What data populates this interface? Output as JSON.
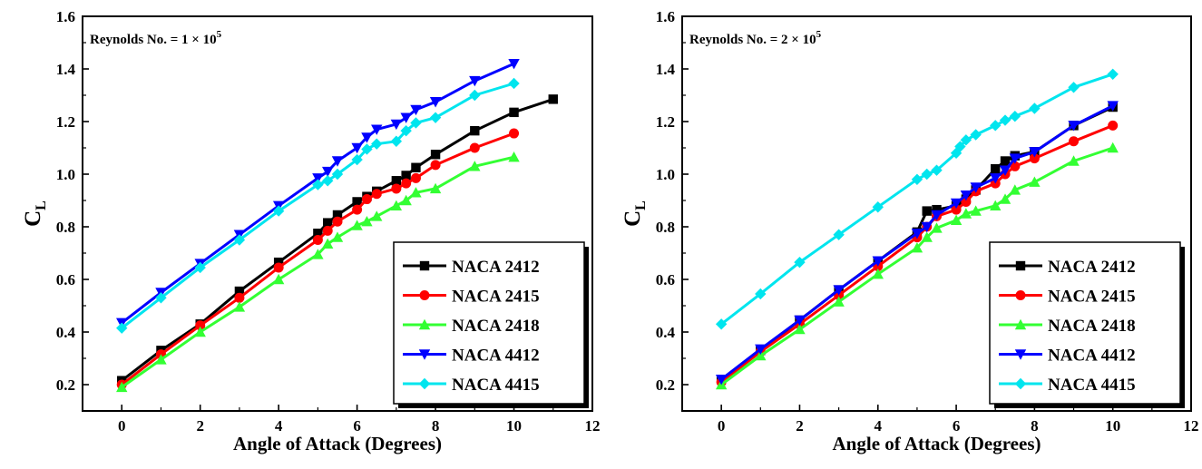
{
  "chart_data": [
    {
      "type": "line",
      "annotation": "Reynolds No. = 1 × 10",
      "annotation_exponent": "5",
      "xlabel": "Angle of Attack (Degrees)",
      "ylabel": "C",
      "ylabel_subscript": "L",
      "xlim": [
        -1,
        12
      ],
      "ylim": [
        0.1,
        1.6
      ],
      "xticks": [
        0,
        2,
        4,
        6,
        8,
        10,
        12
      ],
      "yticks": [
        0.2,
        0.4,
        0.6,
        0.8,
        1.0,
        1.2,
        1.4,
        1.6
      ],
      "xtick_labels": [
        "0",
        "2",
        "4",
        "6",
        "8",
        "10",
        "12"
      ],
      "ytick_labels": [
        "0.2",
        "0.4",
        "0.6",
        "0.8",
        "1.0",
        "1.2",
        "1.4",
        "1.6"
      ],
      "grid": false,
      "legend_position": "bottom-right",
      "series": [
        {
          "name": "NACA 2412",
          "color": "#000000",
          "marker": "square",
          "x": [
            0,
            1,
            2,
            3,
            4,
            5,
            5.25,
            5.5,
            6,
            6.25,
            6.5,
            7,
            7.25,
            7.5,
            8,
            9,
            10,
            11
          ],
          "y": [
            0.215,
            0.33,
            0.43,
            0.555,
            0.665,
            0.775,
            0.815,
            0.845,
            0.895,
            0.915,
            0.935,
            0.975,
            0.995,
            1.025,
            1.075,
            1.165,
            1.235,
            1.285
          ]
        },
        {
          "name": "NACA 2415",
          "color": "#ff0000",
          "marker": "circle",
          "x": [
            0,
            1,
            2,
            3,
            4,
            5,
            5.25,
            5.5,
            6,
            6.25,
            6.5,
            7,
            7.25,
            7.5,
            8,
            9,
            10
          ],
          "y": [
            0.2,
            0.315,
            0.425,
            0.53,
            0.645,
            0.75,
            0.785,
            0.82,
            0.865,
            0.905,
            0.925,
            0.945,
            0.965,
            0.985,
            1.035,
            1.1,
            1.155
          ]
        },
        {
          "name": "NACA 2418",
          "color": "#33ff33",
          "marker": "triangle",
          "x": [
            0,
            1,
            2,
            3,
            4,
            5,
            5.25,
            5.5,
            6,
            6.25,
            6.5,
            7,
            7.25,
            7.5,
            8,
            9,
            10
          ],
          "y": [
            0.19,
            0.295,
            0.4,
            0.495,
            0.6,
            0.695,
            0.735,
            0.76,
            0.805,
            0.82,
            0.84,
            0.88,
            0.9,
            0.93,
            0.945,
            1.03,
            1.065
          ]
        },
        {
          "name": "NACA 4412",
          "color": "#0000ff",
          "marker": "inverted-triangle",
          "x": [
            0,
            1,
            2,
            3,
            4,
            5,
            5.25,
            5.5,
            6,
            6.25,
            6.5,
            7,
            7.25,
            7.5,
            8,
            9,
            10
          ],
          "y": [
            0.435,
            0.55,
            0.66,
            0.77,
            0.88,
            0.985,
            1.01,
            1.05,
            1.1,
            1.14,
            1.17,
            1.19,
            1.215,
            1.245,
            1.275,
            1.355,
            1.42
          ]
        },
        {
          "name": "NACA 4415",
          "color": "#00e5ee",
          "marker": "diamond",
          "x": [
            0,
            1,
            2,
            3,
            4,
            5,
            5.25,
            5.5,
            6,
            6.25,
            6.5,
            7,
            7.25,
            7.5,
            8,
            9,
            10
          ],
          "y": [
            0.415,
            0.53,
            0.645,
            0.75,
            0.86,
            0.96,
            0.975,
            1.0,
            1.055,
            1.095,
            1.115,
            1.125,
            1.165,
            1.195,
            1.215,
            1.3,
            1.345
          ]
        }
      ]
    },
    {
      "type": "line",
      "annotation": "Reynolds No. = 2 × 10",
      "annotation_exponent": "5",
      "xlabel": "Angle of Attack (Degrees)",
      "ylabel": "C",
      "ylabel_subscript": "L",
      "xlim": [
        -1,
        12
      ],
      "ylim": [
        0.1,
        1.6
      ],
      "xticks": [
        0,
        2,
        4,
        6,
        8,
        10,
        12
      ],
      "yticks": [
        0.2,
        0.4,
        0.6,
        0.8,
        1.0,
        1.2,
        1.4,
        1.6
      ],
      "xtick_labels": [
        "0",
        "2",
        "4",
        "6",
        "8",
        "10",
        "12"
      ],
      "ytick_labels": [
        "0.2",
        "0.4",
        "0.6",
        "0.8",
        "1.0",
        "1.2",
        "1.4",
        "1.6"
      ],
      "grid": false,
      "legend_position": "bottom-right",
      "series": [
        {
          "name": "NACA 2412",
          "color": "#000000",
          "marker": "square",
          "x": [
            0,
            1,
            2,
            3,
            4,
            5,
            5.25,
            5.5,
            6,
            6.25,
            6.5,
            7,
            7.25,
            7.5,
            8,
            9,
            10
          ],
          "y": [
            0.22,
            0.33,
            0.445,
            0.56,
            0.67,
            0.78,
            0.86,
            0.865,
            0.88,
            0.905,
            0.94,
            1.02,
            1.05,
            1.07,
            1.085,
            1.185,
            1.255
          ]
        },
        {
          "name": "NACA 2415",
          "color": "#ff0000",
          "marker": "circle",
          "x": [
            0,
            1,
            2,
            3,
            4,
            5,
            5.25,
            5.5,
            6,
            6.25,
            6.5,
            7,
            7.25,
            7.5,
            8,
            9,
            10
          ],
          "y": [
            0.21,
            0.325,
            0.43,
            0.54,
            0.65,
            0.76,
            0.8,
            0.84,
            0.865,
            0.895,
            0.935,
            0.965,
            1.0,
            1.03,
            1.06,
            1.125,
            1.185
          ]
        },
        {
          "name": "NACA 2418",
          "color": "#33ff33",
          "marker": "triangle",
          "x": [
            0,
            1,
            2,
            3,
            4,
            5,
            5.25,
            5.5,
            6,
            6.25,
            6.5,
            7,
            7.25,
            7.5,
            8,
            9,
            10
          ],
          "y": [
            0.2,
            0.31,
            0.41,
            0.515,
            0.62,
            0.72,
            0.76,
            0.795,
            0.825,
            0.85,
            0.86,
            0.88,
            0.905,
            0.94,
            0.97,
            1.05,
            1.1
          ]
        },
        {
          "name": "NACA 4412",
          "color": "#0000ff",
          "marker": "inverted-triangle",
          "x": [
            0,
            1,
            2,
            3,
            4,
            5,
            5.25,
            5.5,
            6,
            6.25,
            6.5,
            7,
            7.25,
            7.5,
            8,
            9,
            10
          ],
          "y": [
            0.22,
            0.335,
            0.445,
            0.56,
            0.67,
            0.775,
            0.8,
            0.845,
            0.89,
            0.92,
            0.95,
            0.985,
            1.015,
            1.06,
            1.085,
            1.185,
            1.26
          ]
        },
        {
          "name": "NACA 4415",
          "color": "#00e5ee",
          "marker": "diamond",
          "x": [
            0,
            1,
            2,
            3,
            4,
            5,
            5.25,
            5.5,
            6,
            6.1,
            6.25,
            6.5,
            7,
            7.25,
            7.5,
            8,
            9,
            10
          ],
          "y": [
            0.43,
            0.545,
            0.665,
            0.77,
            0.875,
            0.98,
            1.0,
            1.015,
            1.08,
            1.105,
            1.13,
            1.15,
            1.185,
            1.205,
            1.22,
            1.25,
            1.33,
            1.38
          ]
        }
      ]
    }
  ]
}
